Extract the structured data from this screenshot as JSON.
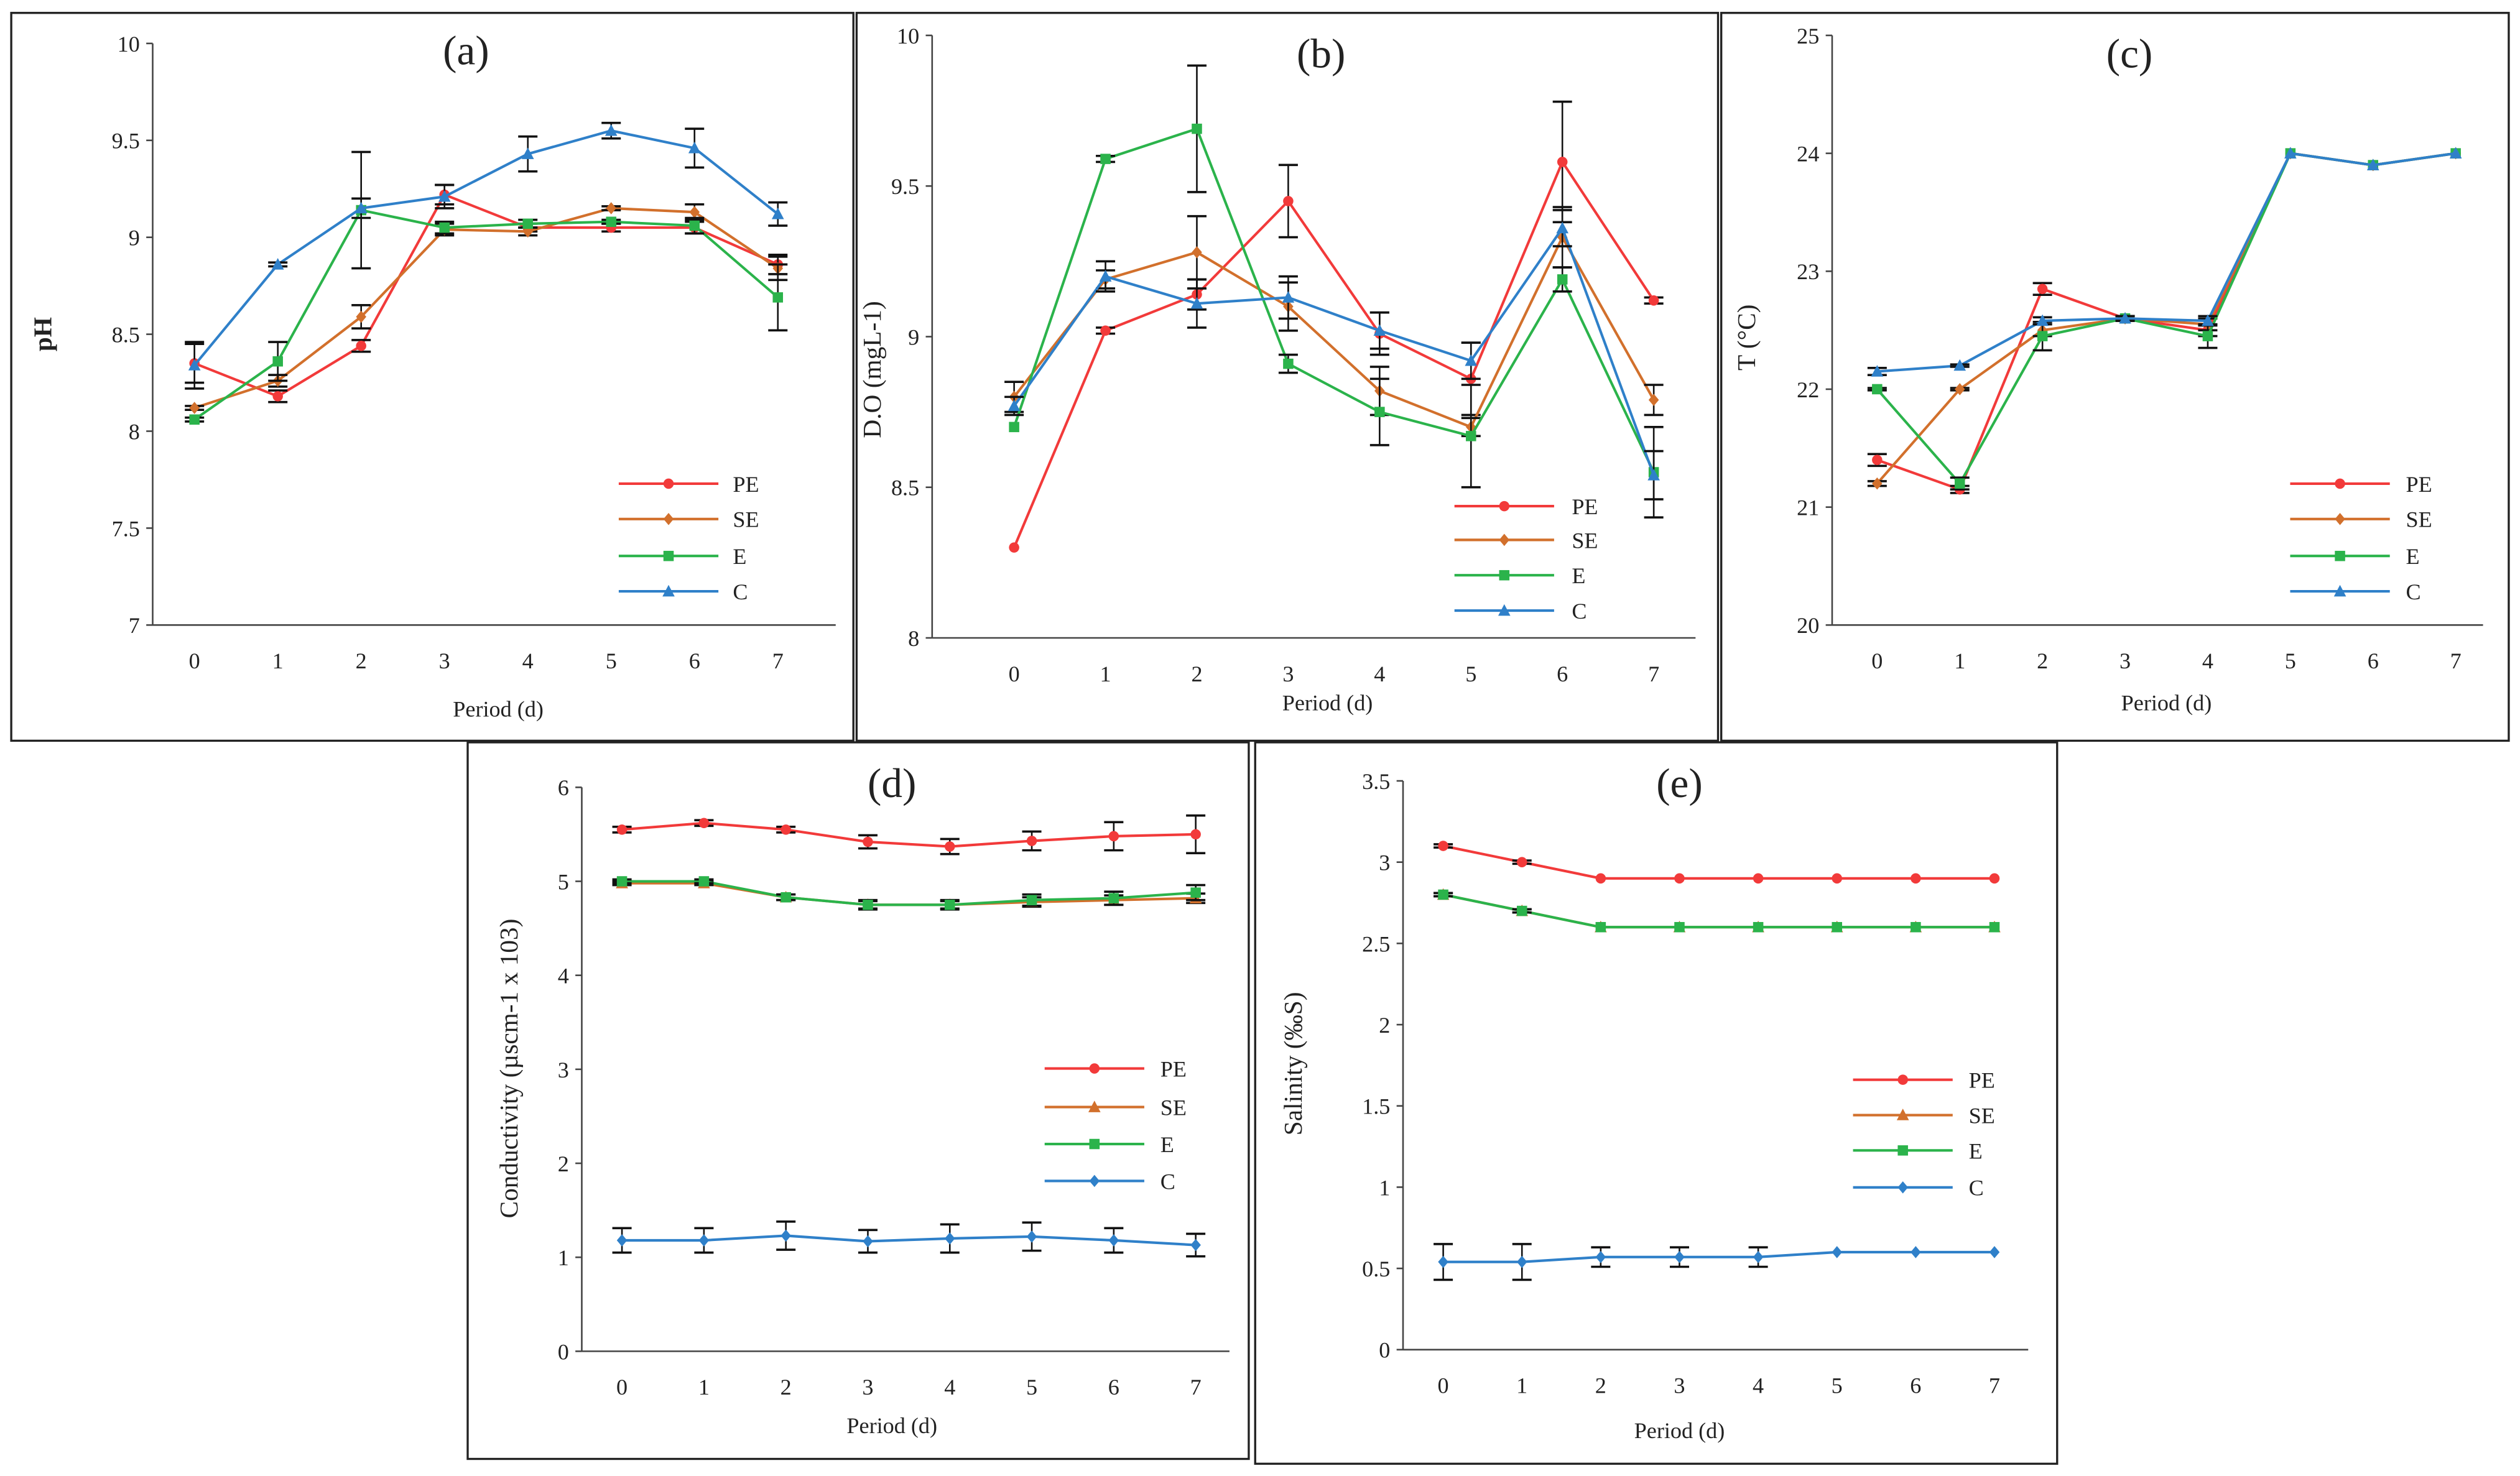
{
  "colors": {
    "PE": "#f23a3a",
    "SE": "#d2702c",
    "E": "#2bb34b",
    "C": "#2f80c9"
  },
  "chart_data": [
    {
      "type": "line",
      "title": "(a)",
      "xlabel": "Period (d)",
      "ylabel": "pH",
      "ylim": [
        7,
        10
      ],
      "yticks": [
        "7",
        "7.5",
        "8",
        "8.5",
        "9",
        "9.5",
        "10"
      ],
      "ystep": 0.5,
      "x": [
        0,
        1,
        2,
        3,
        4,
        5,
        6,
        7
      ],
      "xticks": [
        "0",
        "1",
        "2",
        "3",
        "4",
        "5",
        "6",
        "7"
      ],
      "legend": "bottom-right",
      "series": [
        {
          "name": "PE",
          "marker": "circle",
          "values": [
            8.35,
            8.18,
            8.44,
            9.22,
            9.05,
            9.05,
            9.05,
            8.86
          ],
          "err": [
            0.1,
            0.03,
            0.03,
            0.05,
            0.02,
            0.02,
            0.03,
            0.05
          ]
        },
        {
          "name": "SE",
          "marker": "diamond",
          "values": [
            8.12,
            8.26,
            8.59,
            9.04,
            9.03,
            9.15,
            9.13,
            8.84
          ],
          "err": [
            0.01,
            0.03,
            0.06,
            0.03,
            0.02,
            0.01,
            0.04,
            0.06
          ]
        },
        {
          "name": "E",
          "marker": "square",
          "values": [
            8.06,
            8.36,
            9.14,
            9.05,
            9.07,
            9.08,
            9.06,
            8.69
          ],
          "err": [
            0.01,
            0.1,
            0.3,
            0.03,
            0.02,
            0.01,
            0.04,
            0.17
          ]
        },
        {
          "name": "C",
          "marker": "triangle",
          "values": [
            8.34,
            8.86,
            9.15,
            9.21,
            9.43,
            9.55,
            9.46,
            9.12
          ],
          "err": [
            0.12,
            0.01,
            0.05,
            0.06,
            0.09,
            0.04,
            0.1,
            0.06
          ]
        }
      ]
    },
    {
      "type": "line",
      "title": "(b)",
      "xlabel": "Period (d)",
      "ylabel": "D.O (mgL-1)",
      "ylim": [
        8,
        10
      ],
      "yticks": [
        "8",
        "8.5",
        "9",
        "9.5",
        "10"
      ],
      "ystep": 0.5,
      "x": [
        0,
        1,
        2,
        3,
        4,
        5,
        6,
        7
      ],
      "xticks": [
        "0",
        "1",
        "2",
        "3",
        "4",
        "5",
        "6",
        "7"
      ],
      "legend": "bottom-right",
      "series": [
        {
          "name": "PE",
          "marker": "circle",
          "values": [
            8.3,
            9.02,
            9.14,
            9.45,
            9.01,
            8.86,
            9.58,
            9.12
          ],
          "err": [
            0.0,
            0.01,
            0.05,
            0.12,
            0.07,
            0.12,
            0.2,
            0.01
          ]
        },
        {
          "name": "SE",
          "marker": "diamond",
          "values": [
            8.8,
            9.19,
            9.28,
            9.1,
            8.82,
            8.7,
            9.33,
            8.79
          ],
          "err": [
            0.05,
            0.03,
            0.12,
            0.08,
            0.08,
            0.03,
            0.1,
            0.05
          ]
        },
        {
          "name": "E",
          "marker": "square",
          "values": [
            8.7,
            9.59,
            9.69,
            8.91,
            8.75,
            8.67,
            9.19,
            8.55
          ],
          "err": [
            0.0,
            0.01,
            0.21,
            0.03,
            0.11,
            0.17,
            0.04,
            0.15
          ]
        },
        {
          "name": "C",
          "marker": "triangle",
          "values": [
            8.77,
            9.2,
            9.11,
            9.13,
            9.02,
            8.92,
            9.36,
            8.54
          ],
          "err": [
            0.03,
            0.05,
            0.08,
            0.07,
            0.06,
            0.06,
            0.06,
            0.08
          ]
        }
      ]
    },
    {
      "type": "line",
      "title": "(c)",
      "xlabel": "Period (d)",
      "ylabel": "T (°C)",
      "ylim": [
        20,
        25
      ],
      "yticks": [
        "20",
        "21",
        "22",
        "23",
        "24",
        "25"
      ],
      "ystep": 1,
      "x": [
        0,
        1,
        2,
        3,
        4,
        5,
        6,
        7
      ],
      "xticks": [
        "0",
        "1",
        "2",
        "3",
        "4",
        "5",
        "6",
        "7"
      ],
      "legend": "bottom-right",
      "series": [
        {
          "name": "PE",
          "marker": "circle",
          "values": [
            21.4,
            21.15,
            22.85,
            22.6,
            22.5,
            24.0,
            23.9,
            24.0
          ],
          "err": [
            0.05,
            0.03,
            0.05,
            0.02,
            0.05,
            0,
            0,
            0
          ]
        },
        {
          "name": "SE",
          "marker": "diamond",
          "values": [
            21.2,
            22.0,
            22.5,
            22.6,
            22.55,
            24.0,
            23.9,
            24.0
          ],
          "err": [
            0.02,
            0.01,
            0.05,
            0.02,
            0.05,
            0,
            0,
            0
          ]
        },
        {
          "name": "E",
          "marker": "square",
          "values": [
            22.0,
            21.2,
            22.45,
            22.6,
            22.45,
            24.0,
            23.9,
            24.0
          ],
          "err": [
            0.01,
            0.05,
            0.12,
            0.02,
            0.1,
            0,
            0,
            0
          ]
        },
        {
          "name": "C",
          "marker": "triangle",
          "values": [
            22.15,
            22.2,
            22.58,
            22.6,
            22.58,
            24.0,
            23.9,
            24.0
          ],
          "err": [
            0.03,
            0.01,
            0.03,
            0.02,
            0.04,
            0,
            0,
            0
          ]
        }
      ]
    },
    {
      "type": "line",
      "title": "(d)",
      "xlabel": "Period (d)",
      "ylabel": "Conductivity (µscm-1 x 103)",
      "ylim": [
        0,
        6
      ],
      "yticks": [
        "0",
        "1",
        "2",
        "3",
        "4",
        "5",
        "6"
      ],
      "ystep": 1,
      "x": [
        0,
        1,
        2,
        3,
        4,
        5,
        6,
        7
      ],
      "xticks": [
        "0",
        "1",
        "2",
        "3",
        "4",
        "5",
        "6",
        "7"
      ],
      "legend": "right",
      "series": [
        {
          "name": "PE",
          "marker": "circle",
          "values": [
            5.55,
            5.62,
            5.55,
            5.42,
            5.37,
            5.43,
            5.48,
            5.5
          ],
          "err": [
            0.03,
            0.03,
            0.03,
            0.07,
            0.08,
            0.1,
            0.15,
            0.2
          ]
        },
        {
          "name": "SE",
          "marker": "triangle",
          "values": [
            4.98,
            4.98,
            4.83,
            4.75,
            4.75,
            4.78,
            4.8,
            4.82
          ],
          "err": [
            0.02,
            0.02,
            0.03,
            0.04,
            0.04,
            0.05,
            0.05,
            0.05
          ]
        },
        {
          "name": "E",
          "marker": "square",
          "values": [
            5.0,
            5.0,
            4.83,
            4.75,
            4.75,
            4.8,
            4.82,
            4.88
          ],
          "err": [
            0.02,
            0.02,
            0.03,
            0.05,
            0.05,
            0.06,
            0.07,
            0.08
          ]
        },
        {
          "name": "C",
          "marker": "diamond",
          "values": [
            1.18,
            1.18,
            1.23,
            1.17,
            1.2,
            1.22,
            1.18,
            1.13
          ],
          "err": [
            0.13,
            0.13,
            0.15,
            0.12,
            0.15,
            0.15,
            0.13,
            0.12
          ]
        }
      ]
    },
    {
      "type": "line",
      "title": "(e)",
      "xlabel": "Period (d)",
      "ylabel": "Salinity (‰S)",
      "ylim": [
        0,
        3.5
      ],
      "yticks": [
        "0",
        "0.5",
        "1",
        "1.5",
        "2",
        "2.5",
        "3",
        "3.5"
      ],
      "ystep": 0.5,
      "x": [
        0,
        1,
        2,
        3,
        4,
        5,
        6,
        7
      ],
      "xticks": [
        "0",
        "1",
        "2",
        "3",
        "4",
        "5",
        "6",
        "7"
      ],
      "legend": "right",
      "series": [
        {
          "name": "PE",
          "marker": "circle",
          "values": [
            3.1,
            3.0,
            2.9,
            2.9,
            2.9,
            2.9,
            2.9,
            2.9
          ],
          "err": [
            0.01,
            0.01,
            0,
            0,
            0,
            0,
            0,
            0
          ]
        },
        {
          "name": "SE",
          "marker": "triangle",
          "values": [
            2.8,
            2.7,
            2.6,
            2.6,
            2.6,
            2.6,
            2.6,
            2.6
          ],
          "err": [
            0.01,
            0.01,
            0,
            0,
            0,
            0,
            0,
            0
          ]
        },
        {
          "name": "E",
          "marker": "square",
          "values": [
            2.8,
            2.7,
            2.6,
            2.6,
            2.6,
            2.6,
            2.6,
            2.6
          ],
          "err": [
            0.01,
            0.01,
            0,
            0,
            0,
            0,
            0,
            0
          ]
        },
        {
          "name": "C",
          "marker": "diamond",
          "values": [
            0.54,
            0.54,
            0.57,
            0.57,
            0.57,
            0.6,
            0.6,
            0.6
          ],
          "err": [
            0.11,
            0.11,
            0.06,
            0.06,
            0.06,
            0,
            0,
            0
          ]
        }
      ]
    }
  ]
}
